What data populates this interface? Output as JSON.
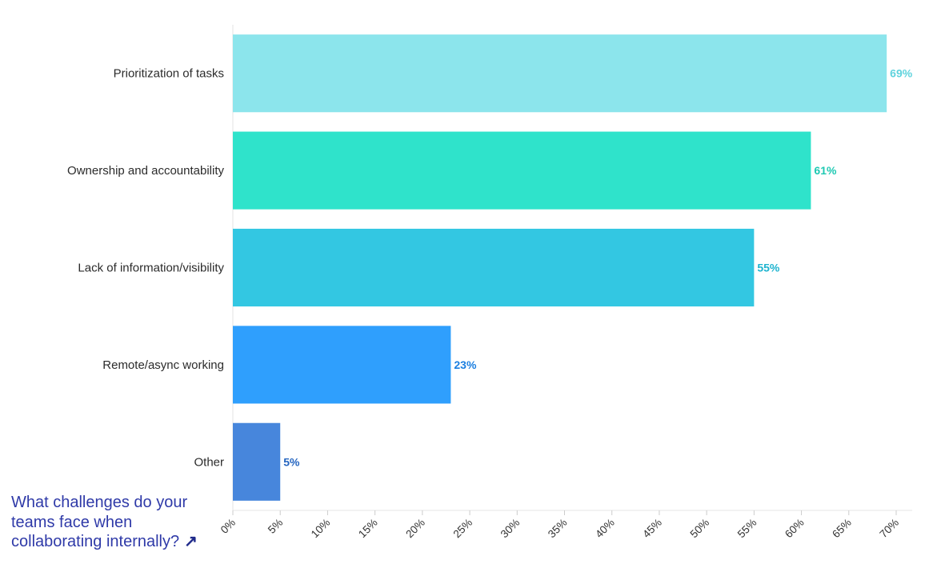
{
  "chart_data": {
    "type": "bar",
    "orientation": "horizontal",
    "categories": [
      "Prioritization of tasks",
      "Ownership and accountability",
      "Lack of information/visibility",
      "Remote/async working",
      "Other"
    ],
    "values": [
      69,
      61,
      55,
      23,
      5
    ],
    "value_labels": [
      "69%",
      "61%",
      "55%",
      "23%",
      "5%"
    ],
    "bar_colors": [
      "#8ce5ec",
      "#2fe3cb",
      "#33c7e2",
      "#2f9ffd",
      "#4786dc"
    ],
    "label_colors": [
      "#5fd3dd",
      "#1fc9b3",
      "#1fb4cf",
      "#1b7fe0",
      "#2565c0"
    ],
    "xlim": [
      0,
      70
    ],
    "xticks": [
      0,
      5,
      10,
      15,
      20,
      25,
      30,
      35,
      40,
      45,
      50,
      55,
      60,
      65,
      70
    ],
    "xtick_labels": [
      "0%",
      "5%",
      "10%",
      "15%",
      "20%",
      "25%",
      "30%",
      "35%",
      "40%",
      "45%",
      "50%",
      "55%",
      "60%",
      "65%",
      "70%"
    ],
    "title": "",
    "xlabel": "",
    "ylabel": "",
    "grid": false,
    "legend": "none"
  },
  "question": {
    "text": "What challenges do your teams face when collaborating internally?",
    "icon": "arrow-up-right-icon",
    "icon_glyph": "↗"
  }
}
